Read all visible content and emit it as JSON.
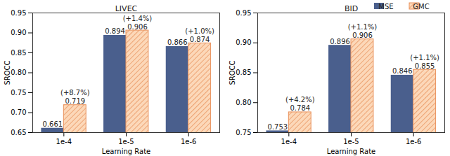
{
  "chart_data": [
    {
      "type": "bar",
      "title": "LIVEC",
      "x_label": "Learning Rate",
      "y_label": "SROCC",
      "categories": [
        "1e-4",
        "1e-5",
        "1e-6"
      ],
      "series": [
        {
          "name": "MSE",
          "color": "#4a5f8d",
          "values": [
            0.661,
            0.894,
            0.866
          ]
        },
        {
          "name": "GMC",
          "color": "#fcd8b9",
          "values": [
            0.719,
            0.906,
            0.874
          ]
        }
      ],
      "annotations": [
        "(+8.7%)",
        "(+1.4%)",
        "(+1.0%)"
      ],
      "ylim": [
        0.65,
        0.95
      ],
      "yticks": [
        0.65,
        {
          "value": 0.7,
          "label": "0.70"
        },
        0.75,
        {
          "value": 0.8,
          "label": "0.80"
        },
        0.85,
        {
          "value": 0.9,
          "label": "0.90"
        },
        0.95
      ],
      "data_labels": true
    },
    {
      "type": "bar",
      "title": "BID",
      "x_label": "Learning Rate",
      "y_label": "SROCC",
      "categories": [
        "1e-4",
        "1e-5",
        "1e-6"
      ],
      "series": [
        {
          "name": "MSE",
          "color": "#4a5f8d",
          "values": [
            0.753,
            0.896,
            0.846
          ]
        },
        {
          "name": "GMC",
          "color": "#fcd8b9",
          "values": [
            0.784,
            0.906,
            0.855
          ]
        }
      ],
      "annotations": [
        "(+4.2%)",
        "(+1.1%)",
        "(+1.1%)"
      ],
      "ylim": [
        0.75,
        0.95
      ],
      "yticks": [
        0.75,
        {
          "value": 0.8,
          "label": "0.80"
        },
        0.85,
        {
          "value": 0.9,
          "label": "0.90"
        },
        0.95
      ],
      "data_labels": true,
      "legend": "upper right"
    }
  ]
}
